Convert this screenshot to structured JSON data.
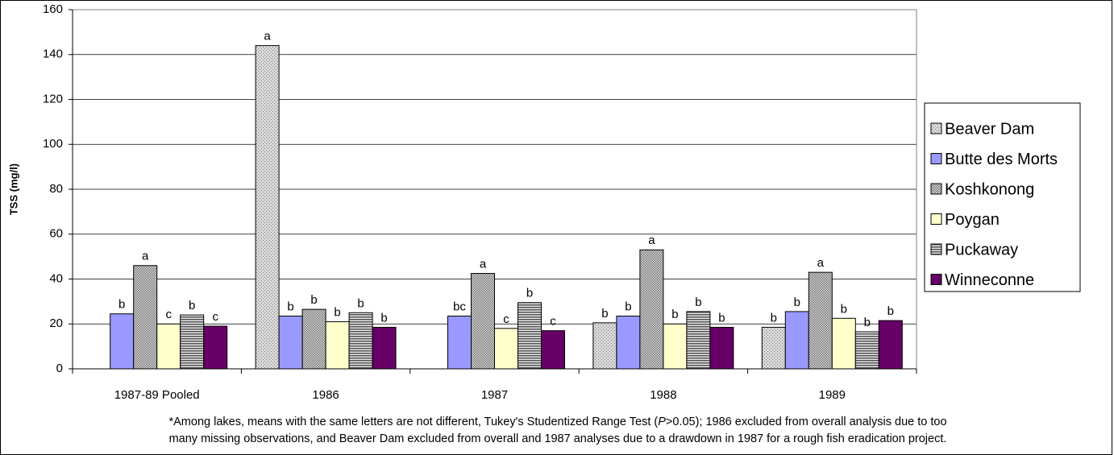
{
  "chart_data": {
    "type": "bar",
    "y_label": "TSS (mg/l)",
    "categories": [
      "1987-89 Pooled",
      "1986",
      "1987",
      "1988",
      "1989"
    ],
    "series": [
      {
        "name": "Beaver Dam",
        "color": "#c0c0c0",
        "pattern": "dots",
        "values": [
          null,
          144,
          null,
          20.5,
          18.5
        ],
        "letters": [
          null,
          "a",
          null,
          "b",
          "b"
        ]
      },
      {
        "name": "Butte des Morts",
        "color": "#9999ff",
        "values": [
          24.5,
          23.5,
          23.5,
          23.5,
          25.5
        ],
        "letters": [
          "b",
          "b",
          "bc",
          "b",
          "b"
        ]
      },
      {
        "name": "Koshkonong",
        "color": "#a0a0a0",
        "pattern": "checks",
        "values": [
          46,
          26.5,
          42.5,
          53,
          43
        ],
        "letters": [
          "a",
          "b",
          "a",
          "a",
          "a"
        ]
      },
      {
        "name": "Poygan",
        "color": "#ffffcc",
        "values": [
          20,
          21,
          18,
          20,
          22.5
        ],
        "letters": [
          "c",
          "b",
          "c",
          "b",
          "b"
        ]
      },
      {
        "name": "Puckaway",
        "color": "#808080",
        "pattern": "stripes",
        "values": [
          24,
          25,
          29.5,
          25.5,
          16.5
        ],
        "letters": [
          "b",
          "b",
          "b",
          "b",
          "b"
        ]
      },
      {
        "name": "Winneconne",
        "color": "#660066",
        "values": [
          19,
          18.5,
          17,
          18.5,
          21.5
        ],
        "letters": [
          "c",
          "b",
          "c",
          "b",
          "b"
        ]
      }
    ],
    "ylim": [
      0,
      160
    ],
    "yticks": [
      0,
      20,
      40,
      60,
      80,
      100,
      120,
      140,
      160
    ],
    "grid": true,
    "legend": "right",
    "footnote": [
      [
        {
          "text": "*Among lakes, means with the same letters are not different, Tukey's Studentized Range Test (",
          "italic": false
        },
        {
          "text": "P",
          "italic": true
        },
        {
          "text": ">0.05); 1986 excluded from overall analysis due to too",
          "italic": false
        }
      ],
      [
        {
          "text": "many missing observations, and Beaver Dam excluded from overall and 1987 analyses due to a drawdown in 1987 for a rough fish eradication project.",
          "italic": false
        }
      ]
    ]
  }
}
